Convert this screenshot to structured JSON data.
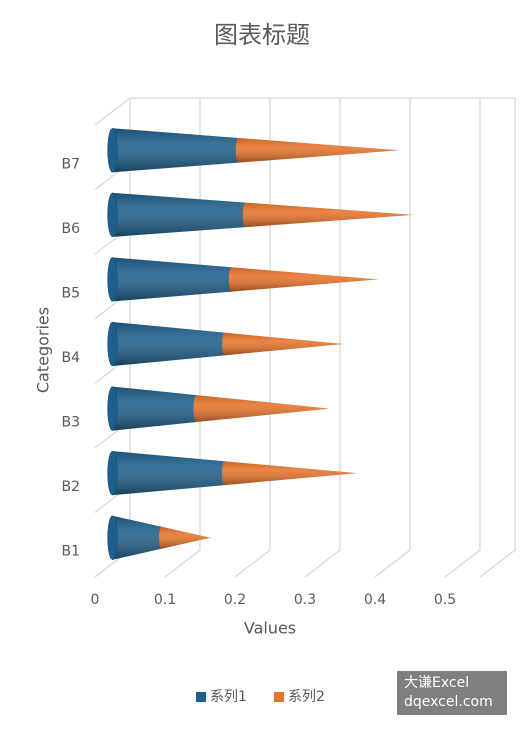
{
  "chart_data": {
    "type": "cone-bar-stacked",
    "title": "图表标题",
    "x_label": "Values",
    "y_label": "Categories",
    "categories": [
      "B1",
      "B2",
      "B3",
      "B4",
      "B5",
      "B6",
      "B7"
    ],
    "series": [
      {
        "name": "系列1",
        "color": "#1f5f8b",
        "values": [
          0.07,
          0.16,
          0.12,
          0.16,
          0.17,
          0.19,
          0.18
        ]
      },
      {
        "name": "系列2",
        "color": "#e8732a",
        "values": [
          0.07,
          0.19,
          0.19,
          0.17,
          0.21,
          0.24,
          0.23
        ]
      }
    ],
    "xlim": [
      0,
      0.55
    ],
    "xticks": [
      0,
      0.1,
      0.2,
      0.3,
      0.4,
      0.5
    ],
    "grid": true,
    "legend": "bottom"
  },
  "watermark": {
    "line1": "大谦Excel",
    "line2": "dqexcel.com"
  }
}
